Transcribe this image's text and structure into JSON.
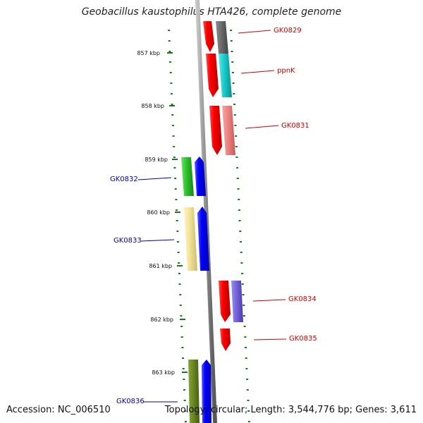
{
  "title": "Geobacillus kaustophilus HTA426, complete genome",
  "footer": {
    "accession": "Accession: NC_006510",
    "summary": "Topology: circular; Length: 3,544,776 bp; Genes: 3,611"
  },
  "ticks": [
    "857 kbp",
    "858 kbp",
    "859 kbp",
    "860 kbp",
    "861 kbp",
    "862 kbp",
    "863 kbp"
  ],
  "genes": [
    {
      "name": "GK0829",
      "strand": "forward",
      "color": "#cc0000"
    },
    {
      "name": "ppnK",
      "strand": "forward",
      "color": "#cc0000"
    },
    {
      "name": "GK0831",
      "strand": "forward",
      "color": "#cc0000"
    },
    {
      "name": "GK0832",
      "strand": "reverse",
      "color": "#0000aa"
    },
    {
      "name": "GK0833",
      "strand": "reverse",
      "color": "#0000aa"
    },
    {
      "name": "GK0834",
      "strand": "forward",
      "color": "#cc0000"
    },
    {
      "name": "GK0835",
      "strand": "forward",
      "color": "#cc0000"
    },
    {
      "name": "GK0836",
      "strand": "reverse",
      "color": "#0000aa"
    }
  ],
  "colors": {
    "forward_strand": "#ff0000",
    "reverse_strand": "#0000ff",
    "backbone": "#888888",
    "tick": "#1a7a1a"
  }
}
